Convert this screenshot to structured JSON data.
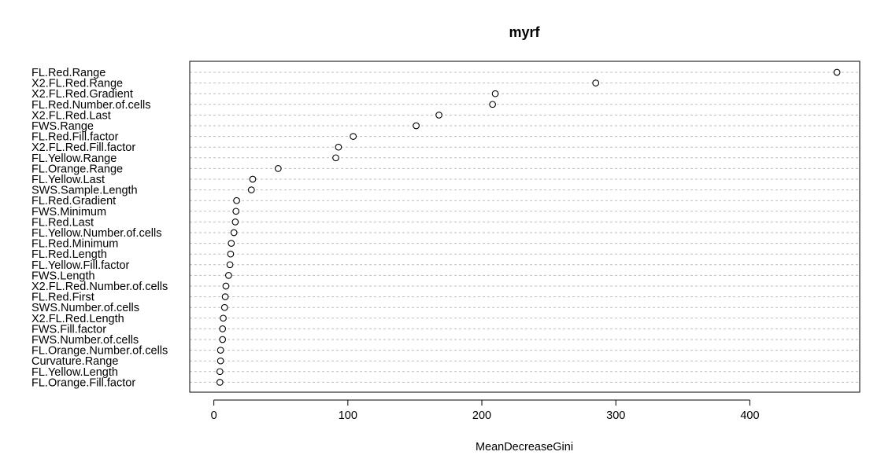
{
  "chart_data": {
    "type": "scatter",
    "title": "myrf",
    "xlabel": "MeanDecreaseGini",
    "ylabel": "",
    "xlim": [
      -18,
      482
    ],
    "xticks": [
      0,
      100,
      200,
      300,
      400
    ],
    "grid": "dotted horizontal guide lines per variable",
    "categories": [
      "FL.Red.Range",
      "X2.FL.Red.Range",
      "X2.FL.Red.Gradient",
      "FL.Red.Number.of.cells",
      "X2.FL.Red.Last",
      "FWS.Range",
      "FL.Red.Fill.factor",
      "X2.FL.Red.Fill.factor",
      "FL.Yellow.Range",
      "FL.Orange.Range",
      "FL.Yellow.Last",
      "SWS.Sample.Length",
      "FL.Red.Gradient",
      "FWS.Minimum",
      "FL.Red.Last",
      "FL.Yellow.Number.of.cells",
      "FL.Red.Minimum",
      "FL.Red.Length",
      "FL.Yellow.Fill.factor",
      "FWS.Length",
      "X2.FL.Red.Number.of.cells",
      "FL.Red.First",
      "SWS.Number.of.cells",
      "X2.FL.Red.Length",
      "FWS.Fill.factor",
      "FWS.Number.of.cells",
      "FL.Orange.Number.of.cells",
      "Curvature.Range",
      "FL.Yellow.Length",
      "FL.Orange.Fill.factor"
    ],
    "values": [
      465,
      285,
      210,
      208,
      168,
      151,
      104,
      93,
      91,
      48,
      29,
      28,
      17,
      16.5,
      16,
      15,
      13,
      12.5,
      12,
      11,
      9,
      8.5,
      8,
      7,
      6.5,
      6.5,
      5,
      5,
      4.5,
      4.5
    ]
  }
}
